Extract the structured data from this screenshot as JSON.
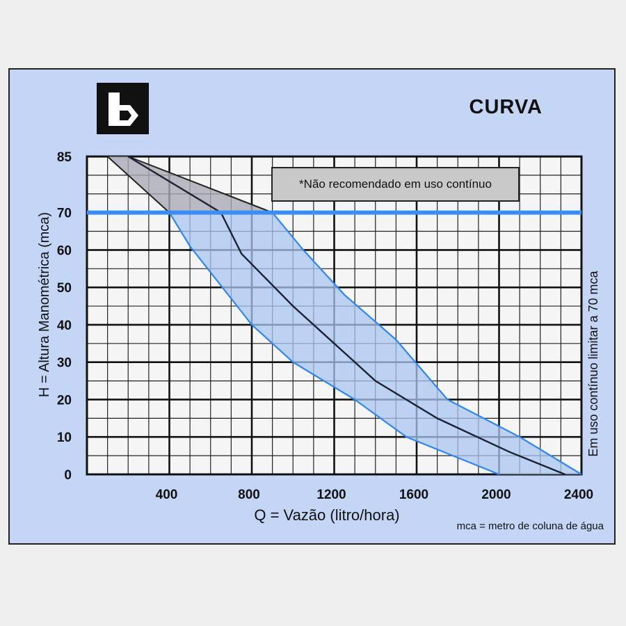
{
  "chart_data": {
    "type": "area",
    "title": "CURVA",
    "xlabel": "Q = Vazão (litro/hora)",
    "ylabel": "H = Altura Manométrica (mca)",
    "right_label": "Em uso contínuo limitar a 70 mca",
    "annotation": "*Não recomendado em uso contínuo",
    "footnote": "mca = metro de coluna de água",
    "xlim": [
      0,
      2400
    ],
    "ylim": [
      0,
      85
    ],
    "x_ticks": [
      400,
      800,
      1200,
      1600,
      2000,
      2400
    ],
    "x_tick_labels": [
      "400",
      "800",
      "1200",
      "1600",
      "2000",
      "2400"
    ],
    "y_ticks": [
      0,
      10,
      20,
      30,
      40,
      50,
      60,
      70,
      85
    ],
    "y_tick_labels": [
      "0",
      "10",
      "20",
      "30",
      "40",
      "50",
      "60",
      "70",
      "85"
    ],
    "grid": true,
    "limit_line": {
      "y": 70,
      "color": "#3a8ef5"
    },
    "series": [
      {
        "role": "lower-bound",
        "x": [
          100,
          400,
          500,
          800,
          1000,
          1300,
          1550,
          2000
        ],
        "y": [
          85,
          70,
          61,
          40,
          30,
          20,
          10,
          0
        ]
      },
      {
        "role": "typical",
        "x": [
          200,
          650,
          750,
          1000,
          1200,
          1400,
          1700,
          2050,
          2320
        ],
        "y": [
          85,
          70,
          59,
          45,
          35,
          25,
          15,
          6,
          0
        ]
      },
      {
        "role": "upper-bound",
        "x": [
          200,
          900,
          1050,
          1250,
          1500,
          1750,
          2100,
          2400
        ],
        "y": [
          85,
          70,
          60,
          48,
          36,
          20,
          10,
          0
        ]
      }
    ],
    "colors": {
      "band_fill": "#a8c5f2",
      "band_edge": "#2f86f0",
      "hatch_fill": "#a9aab5",
      "hatch_edge": "#222222",
      "mid_line": "#1e2230"
    }
  }
}
